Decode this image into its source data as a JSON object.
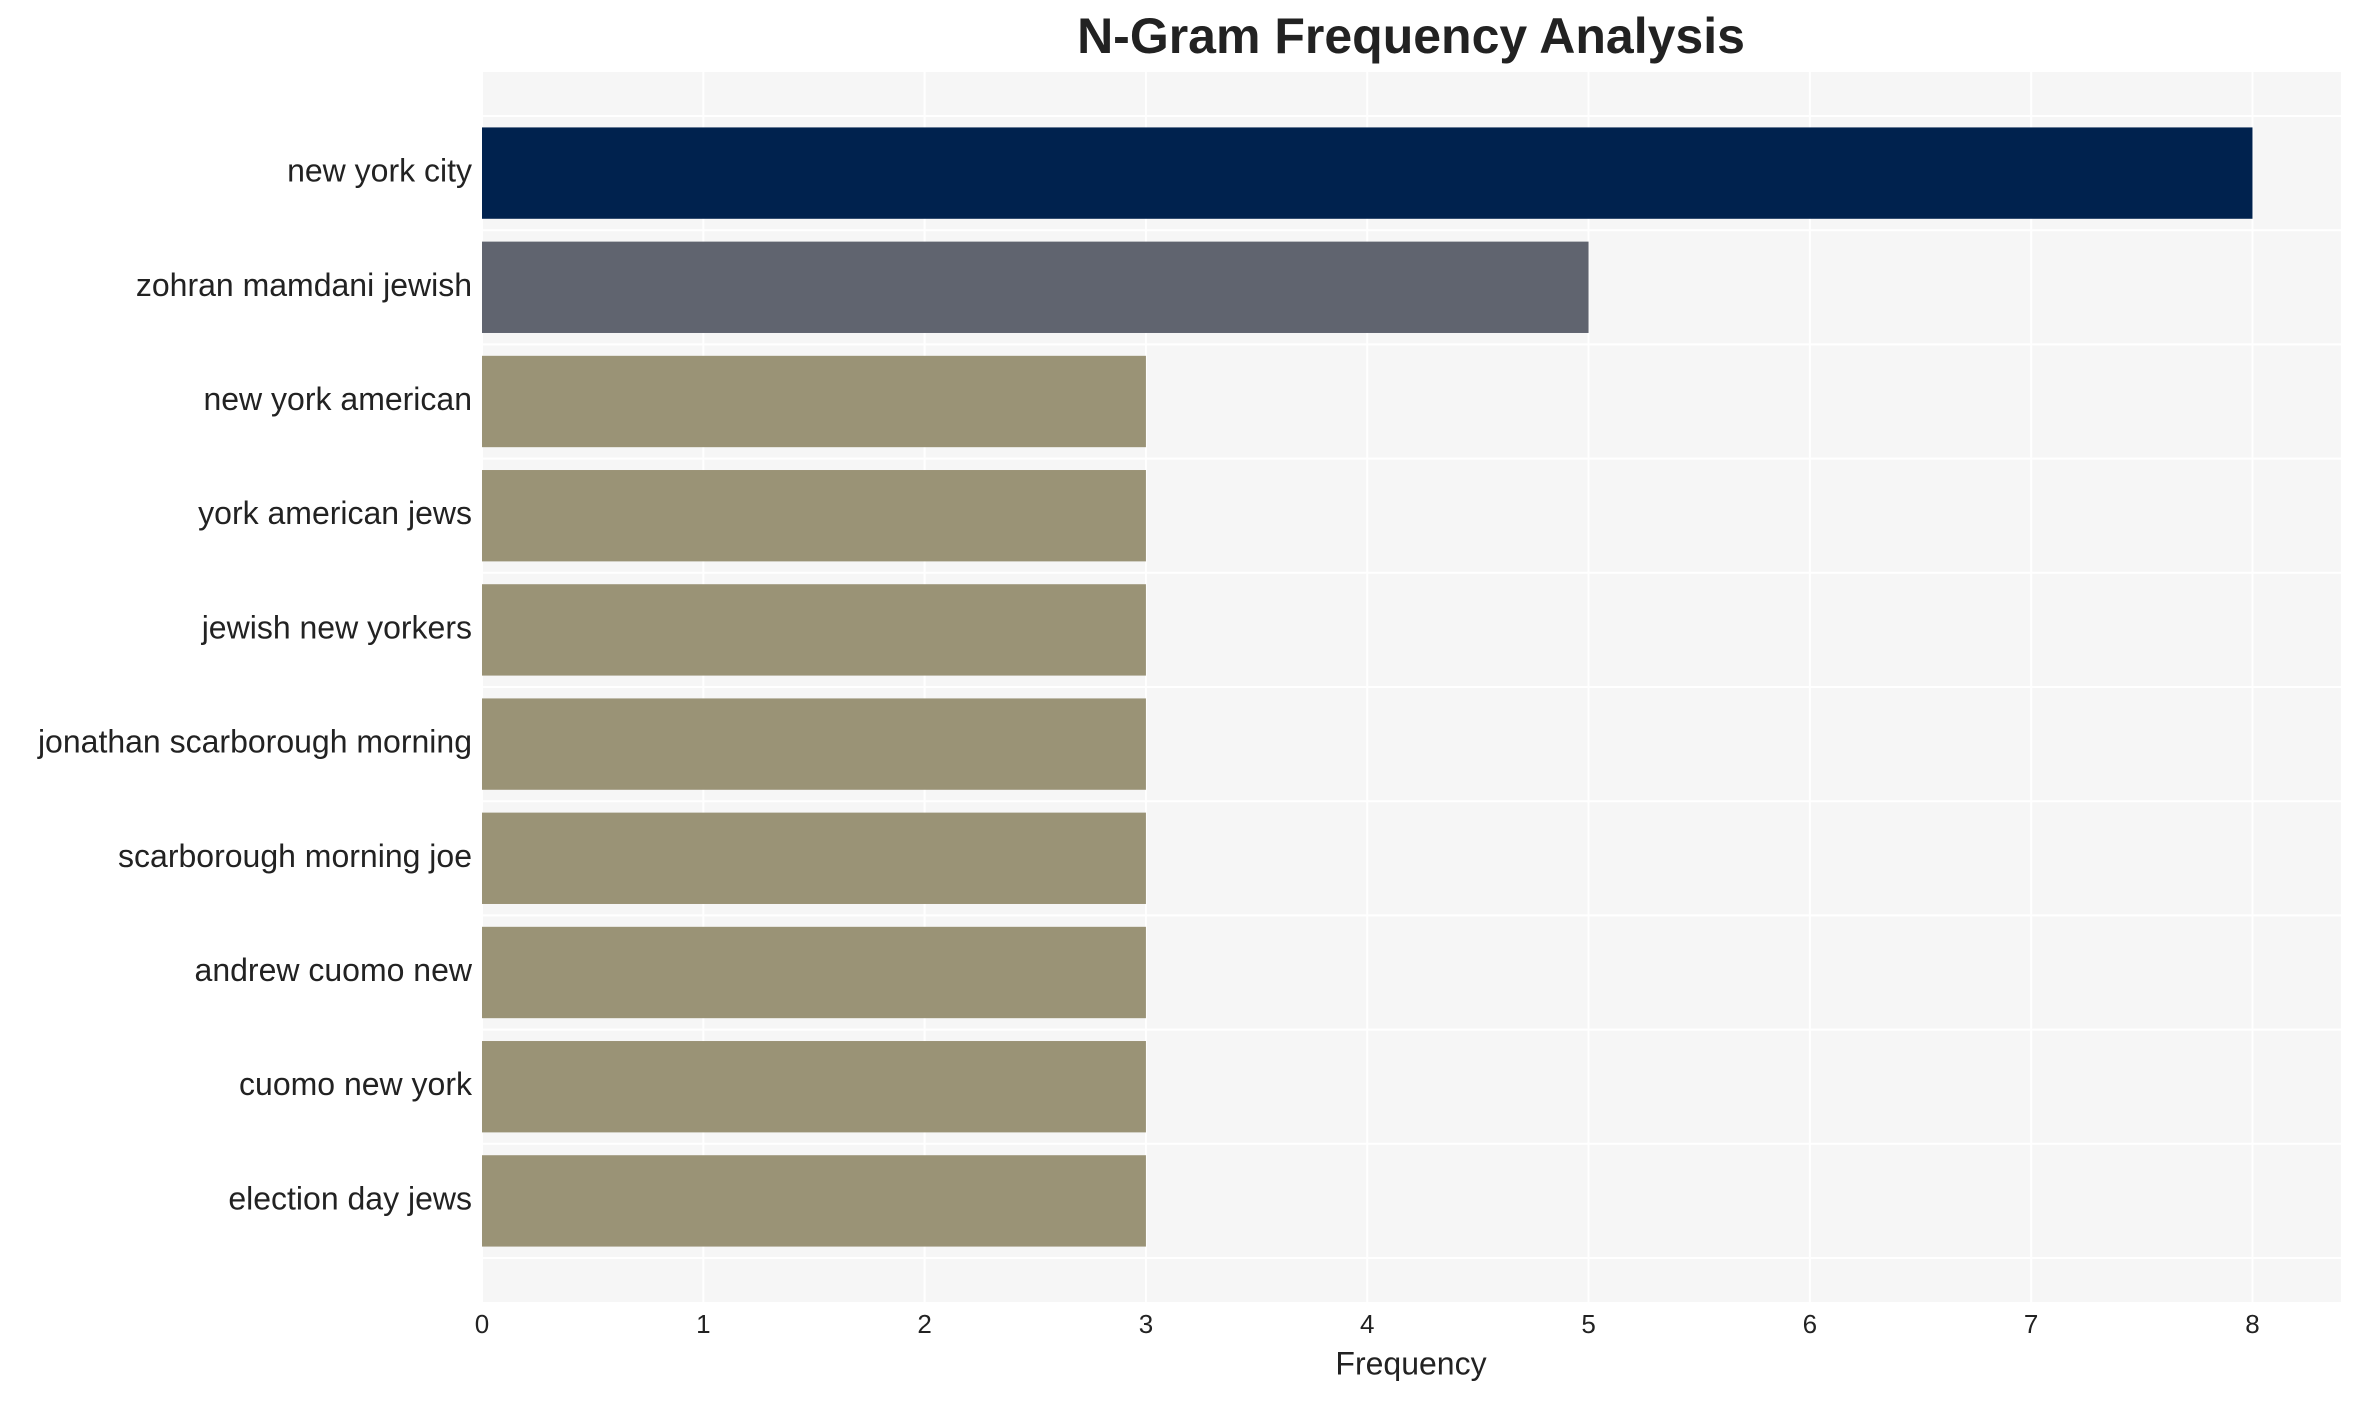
{
  "chart_data": {
    "type": "bar",
    "orientation": "horizontal",
    "title": "N-Gram Frequency Analysis",
    "x_label": "Frequency",
    "categories": [
      "new york city",
      "zohran mamdani jewish",
      "new york american",
      "york american jews",
      "jewish new yorkers",
      "jonathan scarborough morning",
      "scarborough morning joe",
      "andrew cuomo new",
      "cuomo new york",
      "election day jews"
    ],
    "values": [
      8,
      5,
      3,
      3,
      3,
      3,
      3,
      3,
      3,
      3
    ],
    "colors": [
      "#00224e",
      "#60646f",
      "#9a9376",
      "#9a9376",
      "#9a9376",
      "#9a9376",
      "#9a9376",
      "#9a9376",
      "#9a9376",
      "#9a9376"
    ],
    "xlim": [
      0,
      8.4
    ],
    "xticks": [
      0,
      1,
      2,
      3,
      4,
      5,
      6,
      7,
      8
    ],
    "grid": true
  }
}
